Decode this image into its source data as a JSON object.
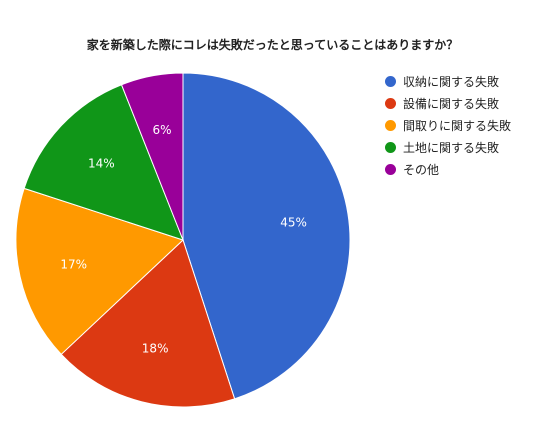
{
  "chart_data": {
    "type": "pie",
    "title": "家を新築した際にコレは失敗だったと思っていることはありますか？",
    "legend_position": "right",
    "slices": [
      {
        "name": "収納に関する失敗",
        "value": 45,
        "label": "45%",
        "color": "#3366cc"
      },
      {
        "name": "設備に関する失敗",
        "value": 18,
        "label": "18%",
        "color": "#dc3912"
      },
      {
        "name": "間取りに関する失敗",
        "value": 17,
        "label": "17%",
        "color": "#ff9900"
      },
      {
        "name": "土地に関する失敗",
        "value": 14,
        "label": "14%",
        "color": "#109618"
      },
      {
        "name": "その他",
        "value": 6,
        "label": "6%",
        "color": "#990099"
      }
    ]
  }
}
